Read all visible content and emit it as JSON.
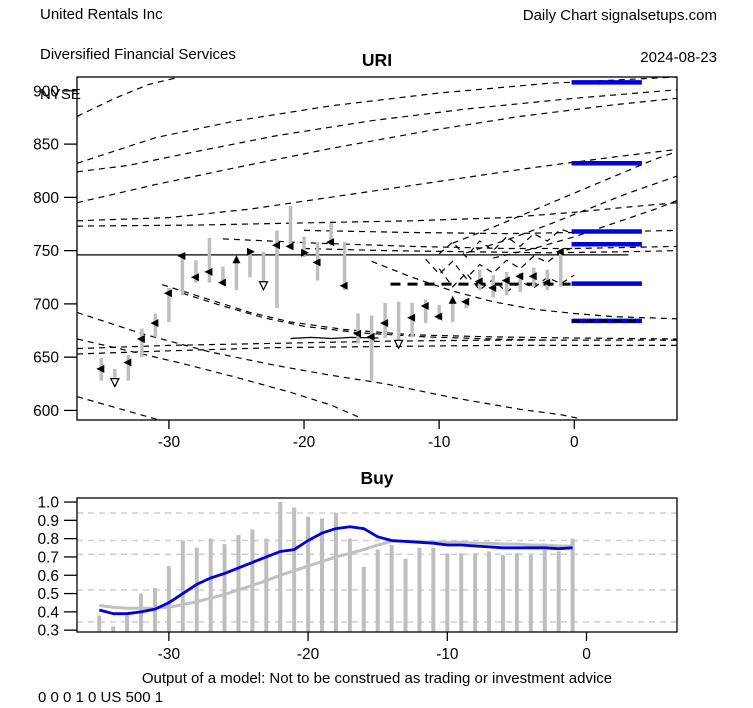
{
  "header": {
    "company": "United Rentals Inc",
    "industry": "Diversified Financial Services",
    "exchange": "NYSE",
    "chart_type": "Daily Chart signalsetups.com",
    "date": "2024-08-23"
  },
  "footer": {
    "disclaimer": "Output of a model: Not to be construed as trading or investment advice",
    "model_flags": "0 0 0 1 0 US 500 1"
  },
  "colors": {
    "signal_blue": "#0000e0",
    "bar_gray": "#bebebe",
    "ref_line_gray": "#c0c0c0",
    "grid_gray": "#cfcfcf",
    "axis_black": "#000000"
  },
  "chart_data": [
    {
      "type": "bar",
      "subtype": "high-low-price-bars-with-forecast-curves",
      "title": "URI",
      "xlabel": "",
      "ylabel": "",
      "xlim": [
        -36.8,
        7.6
      ],
      "ylim": [
        591,
        913
      ],
      "xticks": [
        -30,
        -20,
        -10,
        0
      ],
      "yticks": [
        600,
        650,
        700,
        750,
        800,
        850,
        900
      ],
      "grid": false,
      "bars_legend": [
        "t",
        "low",
        "high",
        "close",
        "marker"
      ],
      "bars": [
        [
          -35,
          628,
          649,
          639,
          "L"
        ],
        [
          -34,
          623,
          639,
          627,
          "D"
        ],
        [
          -33,
          628,
          652,
          645,
          "L"
        ],
        [
          -32,
          650,
          677,
          667,
          "L"
        ],
        [
          -31,
          669,
          691,
          682,
          "L"
        ],
        [
          -30,
          683,
          715,
          710,
          "L"
        ],
        [
          -29,
          708,
          748,
          745,
          "L"
        ],
        [
          -28,
          720,
          741,
          725,
          "L"
        ],
        [
          -27,
          720,
          762,
          730,
          "L"
        ],
        [
          -26,
          718,
          735,
          720,
          "L"
        ],
        [
          -25,
          713,
          743,
          741,
          "U"
        ],
        [
          -24,
          725,
          751,
          749,
          "R"
        ],
        [
          -23,
          716,
          749,
          718,
          "D"
        ],
        [
          -22,
          696,
          769,
          755,
          "L"
        ],
        [
          -21,
          752,
          792,
          754,
          "L"
        ],
        [
          -20,
          744,
          763,
          748,
          "R"
        ],
        [
          -19,
          722,
          758,
          739,
          "L"
        ],
        [
          -18,
          755,
          776,
          758,
          "L"
        ],
        [
          -17,
          713,
          758,
          717,
          "L"
        ],
        [
          -16,
          663,
          691,
          672,
          "L"
        ],
        [
          -15,
          628,
          689,
          669,
          "L"
        ],
        [
          -14,
          668,
          701,
          682,
          "L"
        ],
        [
          -13,
          661,
          702,
          663,
          "D"
        ],
        [
          -12,
          669,
          701,
          687,
          "L"
        ],
        [
          -11,
          682,
          704,
          698,
          "L"
        ],
        [
          -10,
          685,
          699,
          688,
          "L"
        ],
        [
          -9,
          683,
          705,
          703,
          "U"
        ],
        [
          -8,
          696,
          705,
          702,
          "L"
        ],
        [
          -7,
          713,
          732,
          721,
          "L"
        ],
        [
          -6,
          706,
          727,
          715,
          "L"
        ],
        [
          -5,
          708,
          730,
          722,
          "L"
        ],
        [
          -4,
          711,
          729,
          726,
          "L"
        ],
        [
          -3,
          716,
          734,
          726,
          "L"
        ],
        [
          -2,
          713,
          732,
          720,
          "L"
        ],
        [
          -1,
          716,
          751,
          749,
          "L"
        ]
      ],
      "blue_levels": {
        "t_start": -0.2,
        "t_end": 5.0,
        "prices": [
          908,
          832,
          768,
          756,
          719,
          684
        ],
        "dashed_overlay_price": 684
      },
      "thick_dashed": {
        "price": 718.5,
        "t_start": -13.6,
        "t_end": -0.2
      },
      "solid_lines": [
        [
          [
            -36.8,
            746
          ],
          [
            4.0,
            746
          ]
        ],
        [
          [
            -21,
            667.5
          ],
          [
            -19.5,
            668.5
          ],
          [
            -18,
            667.5
          ],
          [
            -16.5,
            668.5
          ],
          [
            -14.5,
            668
          ]
        ]
      ],
      "dashed_curves": [
        [
          [
            -36.8,
            876
          ],
          [
            -34,
            893
          ],
          [
            -31.5,
            906
          ],
          [
            -29.2,
            913
          ]
        ],
        [
          [
            -36.8,
            832
          ],
          [
            -31,
            856
          ],
          [
            -25,
            872
          ],
          [
            -18,
            886
          ],
          [
            -10,
            898
          ],
          [
            -2,
            907
          ],
          [
            7.6,
            913
          ]
        ],
        [
          [
            -36.8,
            824
          ],
          [
            -33,
            830
          ],
          [
            -28,
            843
          ],
          [
            -22,
            858
          ],
          [
            -15,
            872
          ],
          [
            -8,
            883
          ],
          [
            0,
            893
          ],
          [
            7.6,
            901
          ]
        ],
        [
          [
            -36.8,
            795
          ],
          [
            -31,
            812
          ],
          [
            -25,
            828
          ],
          [
            -18,
            846
          ],
          [
            -11,
            862
          ],
          [
            -4,
            876
          ],
          [
            3,
            887
          ],
          [
            7.6,
            893
          ]
        ],
        [
          [
            -36.8,
            778
          ],
          [
            -30,
            781
          ],
          [
            -24,
            789
          ],
          [
            -17,
            802
          ],
          [
            -10,
            815
          ],
          [
            -3,
            828
          ],
          [
            3,
            838
          ],
          [
            7.6,
            845
          ]
        ],
        [
          [
            -36.8,
            773
          ],
          [
            -28,
            774
          ],
          [
            -20,
            776
          ],
          [
            -12,
            778
          ],
          [
            -5,
            781
          ],
          [
            0,
            786
          ],
          [
            4,
            791
          ],
          [
            7.6,
            795
          ]
        ],
        [
          [
            -20,
            769
          ],
          [
            -12,
            767
          ],
          [
            -5,
            766
          ],
          [
            0,
            767
          ],
          [
            7.6,
            769
          ]
        ],
        [
          [
            -26,
            761
          ],
          [
            -19,
            757
          ],
          [
            -12,
            754
          ],
          [
            -5,
            752
          ],
          [
            0,
            752
          ],
          [
            7.6,
            754
          ]
        ],
        [
          [
            -20,
            752
          ],
          [
            -14,
            750
          ],
          [
            -8,
            749
          ],
          [
            -2,
            748
          ],
          [
            4,
            749
          ],
          [
            7.6,
            750
          ]
        ],
        [
          [
            -9,
            757
          ],
          [
            -6,
            772
          ],
          [
            -3,
            788
          ],
          [
            0,
            804
          ],
          [
            3,
            820
          ],
          [
            6,
            836
          ],
          [
            7.6,
            843
          ]
        ],
        [
          [
            -8,
            748
          ],
          [
            -5,
            760
          ],
          [
            -2,
            774
          ],
          [
            1,
            789
          ],
          [
            4,
            804
          ],
          [
            7.6,
            820
          ]
        ],
        [
          [
            -6,
            743
          ],
          [
            -3,
            752
          ],
          [
            0,
            763
          ],
          [
            3,
            776
          ],
          [
            6,
            789
          ],
          [
            7.6,
            797
          ]
        ],
        [
          [
            -36.8,
            692
          ],
          [
            -32,
            672
          ],
          [
            -27,
            655
          ],
          [
            -22,
            642
          ],
          [
            -18,
            633
          ],
          [
            -14,
            625
          ],
          [
            -9,
            612
          ],
          [
            -4,
            601
          ],
          [
            -1,
            596
          ],
          [
            0.5,
            592
          ]
        ],
        [
          [
            -36.8,
            667
          ],
          [
            -33,
            656
          ],
          [
            -29,
            644
          ],
          [
            -25,
            631
          ],
          [
            -21,
            617
          ],
          [
            -18,
            605
          ],
          [
            -16,
            594
          ]
        ],
        [
          [
            -36.8,
            613
          ],
          [
            -33.5,
            601
          ],
          [
            -31,
            592
          ],
          [
            -30.2,
            589
          ]
        ],
        [
          [
            -36.8,
            658
          ],
          [
            -30,
            661
          ],
          [
            -22,
            663
          ],
          [
            -14,
            665
          ],
          [
            -6,
            666
          ],
          [
            2,
            666
          ],
          [
            7.6,
            666
          ]
        ],
        [
          [
            -36.8,
            653
          ],
          [
            -30,
            656
          ],
          [
            -22,
            659
          ],
          [
            -14,
            660
          ],
          [
            -6,
            661
          ],
          [
            2,
            661
          ],
          [
            7.6,
            661
          ]
        ],
        [
          [
            -30.5,
            718
          ],
          [
            -27,
            704
          ],
          [
            -24,
            692
          ],
          [
            -21,
            683
          ],
          [
            -17,
            676
          ],
          [
            -12,
            671
          ],
          [
            -6,
            669
          ],
          [
            0,
            668
          ],
          [
            7.6,
            667
          ]
        ],
        [
          [
            -29,
            710
          ],
          [
            -26,
            698
          ],
          [
            -23,
            687
          ],
          [
            -20,
            679
          ],
          [
            -16,
            673
          ],
          [
            -11,
            669
          ],
          [
            -6,
            667
          ],
          [
            -2,
            666
          ]
        ],
        [
          [
            -15,
            740
          ],
          [
            -12,
            725
          ],
          [
            -9,
            712
          ],
          [
            -6,
            702
          ],
          [
            -3,
            695
          ],
          [
            0,
            691
          ],
          [
            3,
            688
          ],
          [
            7.6,
            686
          ]
        ],
        [
          [
            -11,
            742
          ],
          [
            -10,
            728
          ],
          [
            -9,
            740
          ],
          [
            -8,
            724
          ],
          [
            -7,
            737
          ],
          [
            -6,
            729
          ],
          [
            -5,
            741
          ],
          [
            -4,
            733
          ],
          [
            -3,
            745
          ],
          [
            -2,
            739
          ],
          [
            -1,
            749
          ],
          [
            0,
            753
          ]
        ],
        [
          [
            -10,
            747
          ],
          [
            -9,
            758
          ],
          [
            -8,
            744
          ],
          [
            -7,
            759
          ],
          [
            -6,
            750
          ],
          [
            -5,
            763
          ],
          [
            -4,
            754
          ],
          [
            -3,
            766
          ],
          [
            -2,
            759
          ],
          [
            -1,
            770
          ],
          [
            0,
            766
          ]
        ],
        [
          [
            -10,
            733
          ],
          [
            -9,
            716
          ],
          [
            -8,
            729
          ],
          [
            -7,
            713
          ],
          [
            -6,
            723
          ],
          [
            -5,
            711
          ],
          [
            -4,
            721
          ],
          [
            -3,
            715
          ],
          [
            -2,
            725
          ],
          [
            -1,
            719
          ],
          [
            0,
            727
          ]
        ]
      ]
    },
    {
      "type": "line",
      "subtype": "model-probability-with-bars",
      "title": "Buy",
      "xlabel": "",
      "ylabel": "",
      "xlim": [
        -36.6,
        6.5
      ],
      "ylim": [
        0.29,
        1.022
      ],
      "xticks": [
        -30,
        -20,
        -10,
        0
      ],
      "yticks": [
        0.3,
        0.4,
        0.5,
        0.6,
        0.7,
        0.8,
        0.9,
        1.0
      ],
      "gridlines": [
        0.345,
        0.52,
        0.715,
        0.79,
        0.94
      ],
      "x": [
        -35,
        -34,
        -33,
        -32,
        -31,
        -30,
        -29,
        -28,
        -27,
        -26,
        -25,
        -24,
        -23,
        -22,
        -21,
        -20,
        -19,
        -18,
        -17,
        -16,
        -15,
        -14,
        -13,
        -12,
        -11,
        -10,
        -9,
        -8,
        -7,
        -6,
        -5,
        -4,
        -3,
        -2,
        -1
      ],
      "series": [
        {
          "name": "bar-values",
          "style": "gray-bars",
          "values": [
            0.38,
            0.32,
            0.38,
            0.5,
            0.53,
            0.65,
            0.79,
            0.75,
            0.8,
            0.77,
            0.82,
            0.85,
            0.8,
            1.0,
            0.97,
            0.92,
            0.91,
            0.94,
            0.8,
            0.645,
            0.74,
            0.765,
            0.69,
            0.75,
            0.75,
            0.72,
            0.72,
            0.72,
            0.73,
            0.71,
            0.72,
            0.71,
            0.74,
            0.73,
            0.8
          ]
        },
        {
          "name": "model-output",
          "style": "blue-line",
          "values": [
            0.41,
            0.39,
            0.39,
            0.4,
            0.415,
            0.45,
            0.5,
            0.55,
            0.585,
            0.61,
            0.64,
            0.67,
            0.7,
            0.73,
            0.74,
            0.79,
            0.83,
            0.855,
            0.865,
            0.855,
            0.81,
            0.79,
            0.785,
            0.78,
            0.775,
            0.765,
            0.765,
            0.76,
            0.755,
            0.75,
            0.75,
            0.75,
            0.75,
            0.745,
            0.75
          ]
        },
        {
          "name": "reference",
          "style": "gray-line",
          "values": [
            0.435,
            0.425,
            0.42,
            0.42,
            0.42,
            0.425,
            0.44,
            0.455,
            0.475,
            0.495,
            0.52,
            0.545,
            0.57,
            0.6,
            0.625,
            0.65,
            0.675,
            0.7,
            0.72,
            0.74,
            0.765,
            0.785,
            0.785,
            0.785,
            0.78,
            0.78,
            0.78,
            0.775,
            0.775,
            0.77,
            0.77,
            0.765,
            0.765,
            0.76,
            0.76
          ]
        }
      ],
      "legend": false
    }
  ]
}
